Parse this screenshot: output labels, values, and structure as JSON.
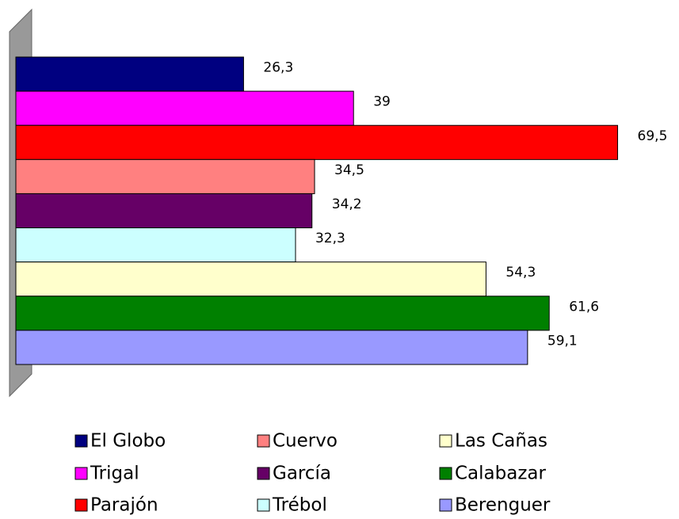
{
  "chart_data": {
    "type": "bar",
    "orientation": "horizontal",
    "xlim": [
      0,
      70
    ],
    "series": [
      {
        "name": "El Globo",
        "color": "#000080",
        "values": [
          26.3
        ],
        "value_labels": [
          "26,3"
        ]
      },
      {
        "name": "Trigal",
        "color": "#ff00ff",
        "values": [
          39
        ],
        "value_labels": [
          "39"
        ]
      },
      {
        "name": "Parajón",
        "color": "#ff0000",
        "values": [
          69.5
        ],
        "value_labels": [
          "69,5"
        ]
      },
      {
        "name": "Cuervo",
        "color": "#ff8080",
        "values": [
          34.5
        ],
        "value_labels": [
          "34,5"
        ]
      },
      {
        "name": "García",
        "color": "#660066",
        "values": [
          34.2
        ],
        "value_labels": [
          "34,2"
        ]
      },
      {
        "name": "Trébol",
        "color": "#ccffff",
        "values": [
          32.3
        ],
        "value_labels": [
          "32,3"
        ]
      },
      {
        "name": "Las Cañas",
        "color": "#ffffcc",
        "values": [
          54.3
        ],
        "value_labels": [
          "54,3"
        ]
      },
      {
        "name": "Calabazar",
        "color": "#008000",
        "values": [
          61.6
        ],
        "value_labels": [
          "61,6"
        ]
      },
      {
        "name": "Berenguer",
        "color": "#9999ff",
        "values": [
          59.1
        ],
        "value_labels": [
          "59,1"
        ]
      }
    ],
    "legend": "bottom"
  }
}
